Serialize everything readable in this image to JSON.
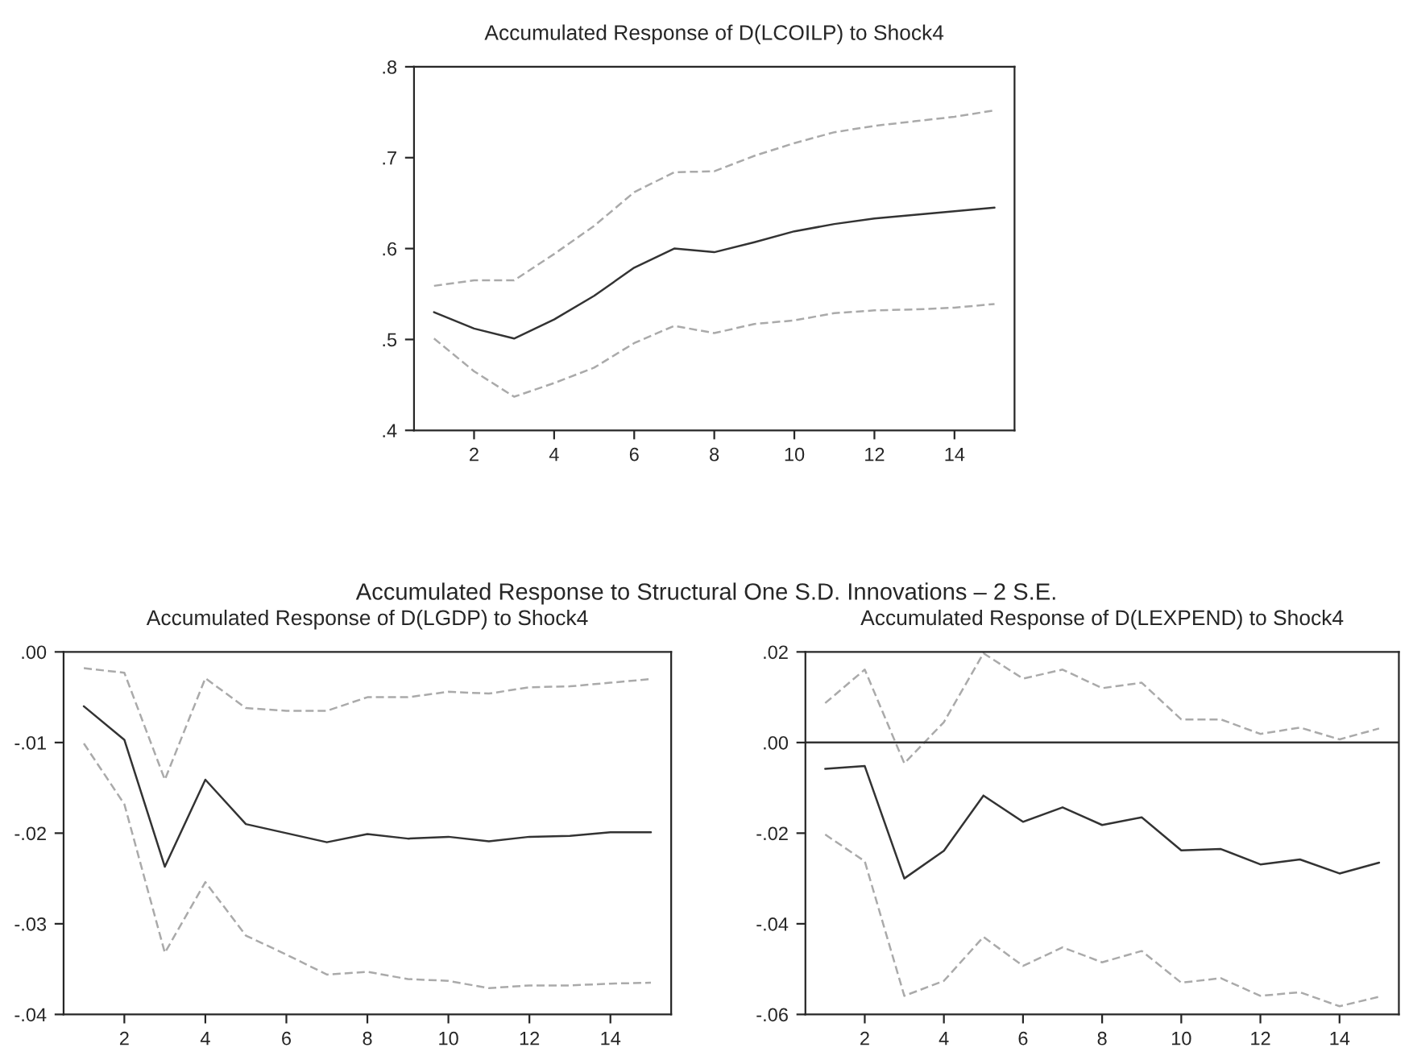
{
  "chart_data": [
    {
      "type": "line",
      "title": "Accumulated Response of D(LCOILP) to Shock4",
      "annotations": [
        "Accumulated Response to Structural One S.D. Innovations – 2 S.E."
      ],
      "x": [
        1,
        2,
        3,
        4,
        5,
        6,
        7,
        8,
        9,
        10,
        11,
        12,
        13,
        14,
        15
      ],
      "xlim": [
        0.5,
        15.5
      ],
      "xticks": [
        2,
        4,
        6,
        8,
        10,
        12,
        14
      ],
      "ylim": [
        0.4,
        0.8
      ],
      "yticks": [
        {
          "value": 0.4,
          "label": ".4"
        },
        {
          "value": 0.5,
          "label": ".5"
        },
        {
          "value": 0.6,
          "label": ".6"
        },
        {
          "value": 0.7,
          "label": ".7"
        },
        {
          "value": 0.8,
          "label": ".8"
        }
      ],
      "grid": false,
      "legend": false,
      "series": [
        {
          "color": "#333333",
          "line_style": "solid",
          "values": [
            0.53,
            0.512,
            0.501,
            0.522,
            0.548,
            0.579,
            0.6,
            0.596,
            0.607,
            0.619,
            0.627,
            0.633,
            0.637,
            0.641,
            0.645
          ]
        },
        {
          "color": "#aaaaaa",
          "line_style": "dashed",
          "values": [
            0.559,
            0.565,
            0.565,
            0.594,
            0.625,
            0.662,
            0.684,
            0.685,
            0.702,
            0.716,
            0.728,
            0.735,
            0.74,
            0.745,
            0.752
          ]
        },
        {
          "color": "#aaaaaa",
          "line_style": "dashed",
          "values": [
            0.501,
            0.465,
            0.437,
            0.452,
            0.469,
            0.496,
            0.515,
            0.507,
            0.517,
            0.521,
            0.529,
            0.532,
            0.533,
            0.535,
            0.539
          ]
        }
      ]
    },
    {
      "type": "line",
      "title": "Accumulated Response of D(LGDP) to Shock4",
      "x": [
        1,
        2,
        3,
        4,
        5,
        6,
        7,
        8,
        9,
        10,
        11,
        12,
        13,
        14,
        15
      ],
      "xlim": [
        0.5,
        15.5
      ],
      "xticks": [
        2,
        4,
        6,
        8,
        10,
        12,
        14
      ],
      "ylim": [
        -0.04,
        0.0
      ],
      "yticks": [
        {
          "value": -0.04,
          "label": "-.04"
        },
        {
          "value": -0.03,
          "label": "-.03"
        },
        {
          "value": -0.02,
          "label": "-.02"
        },
        {
          "value": -0.01,
          "label": "-.01"
        },
        {
          "value": 0.0,
          "label": ".00"
        }
      ],
      "grid": false,
      "legend": false,
      "series": [
        {
          "color": "#333333",
          "line_style": "solid",
          "values": [
            -0.006,
            -0.0097,
            -0.0237,
            -0.0141,
            -0.019,
            -0.02,
            -0.021,
            -0.0201,
            -0.0206,
            -0.0204,
            -0.0209,
            -0.0204,
            -0.0203,
            -0.0199,
            -0.0199
          ]
        },
        {
          "color": "#aaaaaa",
          "line_style": "dashed",
          "values": [
            -0.0018,
            -0.0023,
            -0.0141,
            -0.0029,
            -0.0062,
            -0.0065,
            -0.0065,
            -0.005,
            -0.005,
            -0.0044,
            -0.0046,
            -0.0039,
            -0.0038,
            -0.0034,
            -0.003
          ]
        },
        {
          "color": "#aaaaaa",
          "line_style": "dashed",
          "values": [
            -0.0101,
            -0.0168,
            -0.0332,
            -0.0254,
            -0.0313,
            -0.0334,
            -0.0356,
            -0.0353,
            -0.0361,
            -0.0363,
            -0.0371,
            -0.0368,
            -0.0368,
            -0.0366,
            -0.0365
          ]
        }
      ]
    },
    {
      "type": "line",
      "title": "Accumulated Response of D(LEXPEND) to Shock4",
      "x": [
        1,
        2,
        3,
        4,
        5,
        6,
        7,
        8,
        9,
        10,
        11,
        12,
        13,
        14,
        15
      ],
      "xlim": [
        0.5,
        15.5
      ],
      "xticks": [
        2,
        4,
        6,
        8,
        10,
        12,
        14
      ],
      "ylim": [
        -0.06,
        0.02
      ],
      "yticks": [
        {
          "value": -0.06,
          "label": "-.06"
        },
        {
          "value": -0.04,
          "label": "-.04"
        },
        {
          "value": -0.02,
          "label": "-.02"
        },
        {
          "value": 0.0,
          "label": ".00"
        },
        {
          "value": 0.02,
          "label": ".02"
        }
      ],
      "grid": false,
      "legend": false,
      "ref_lines": [
        {
          "axis": "y",
          "value": 0.0,
          "color": "#333333",
          "line_style": "solid"
        }
      ],
      "series": [
        {
          "color": "#333333",
          "line_style": "solid",
          "values": [
            -0.0058,
            -0.0052,
            -0.03,
            -0.0239,
            -0.0117,
            -0.0175,
            -0.0143,
            -0.0182,
            -0.0165,
            -0.0238,
            -0.0235,
            -0.0269,
            -0.0258,
            -0.0289,
            -0.0265
          ]
        },
        {
          "color": "#aaaaaa",
          "line_style": "dashed",
          "values": [
            0.0087,
            0.0161,
            -0.0046,
            0.0045,
            0.0197,
            0.0141,
            0.0161,
            0.012,
            0.0132,
            0.0051,
            0.0051,
            0.0019,
            0.0033,
            0.0007,
            0.0031
          ]
        },
        {
          "color": "#aaaaaa",
          "line_style": "dashed",
          "values": [
            -0.0203,
            -0.0262,
            -0.0559,
            -0.0526,
            -0.0429,
            -0.0493,
            -0.0452,
            -0.0485,
            -0.046,
            -0.053,
            -0.052,
            -0.0559,
            -0.0551,
            -0.0582,
            -0.0561
          ]
        }
      ]
    }
  ]
}
